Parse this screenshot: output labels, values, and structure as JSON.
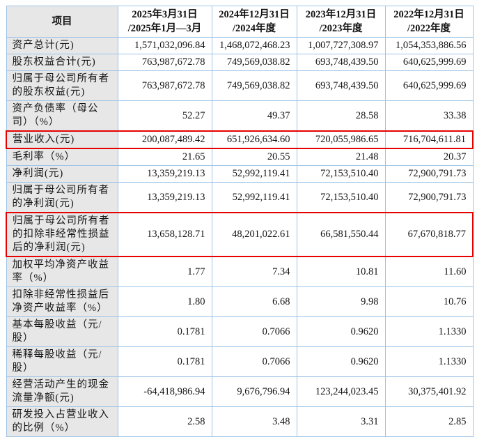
{
  "table": {
    "columns": [
      {
        "line1": "项目",
        "line2": ""
      },
      {
        "line1": "2025年3月31日",
        "line2": "/2025年1月—3月"
      },
      {
        "line1": "2024年12月31日",
        "line2": "/2024年度"
      },
      {
        "line1": "2023年12月31日",
        "line2": "/2023年度"
      },
      {
        "line1": "2022年12月31日",
        "line2": "/2022年度"
      }
    ],
    "rows": [
      {
        "label": "资产总计(元)",
        "values": [
          "1,571,032,096.84",
          "1,468,072,468.23",
          "1,007,727,308.97",
          "1,054,353,886.56"
        ],
        "highlighted": false
      },
      {
        "label": "股东权益合计(元)",
        "values": [
          "763,987,672.78",
          "749,569,038.82",
          "693,748,439.50",
          "640,625,999.69"
        ],
        "highlighted": false
      },
      {
        "label": "归属于母公司所有者的股东权益(元)",
        "values": [
          "763,987,672.78",
          "749,569,038.82",
          "693,748,439.50",
          "640,625,999.69"
        ],
        "highlighted": false
      },
      {
        "label": "资产负债率（母公司）（%）",
        "values": [
          "52.27",
          "49.37",
          "28.58",
          "33.38"
        ],
        "highlighted": false
      },
      {
        "label": "营业收入(元)",
        "values": [
          "200,087,489.42",
          "651,926,634.60",
          "720,055,986.65",
          "716,704,611.81"
        ],
        "highlighted": true
      },
      {
        "label": "毛利率（%）",
        "values": [
          "21.65",
          "20.55",
          "21.48",
          "20.37"
        ],
        "highlighted": false
      },
      {
        "label": "净利润(元)",
        "values": [
          "13,359,219.13",
          "52,992,119.41",
          "72,153,510.40",
          "72,900,791.73"
        ],
        "highlighted": false
      },
      {
        "label": "归属于母公司所有者的净利润(元)",
        "values": [
          "13,359,219.13",
          "52,992,119.41",
          "72,153,510.40",
          "72,900,791.73"
        ],
        "highlighted": false
      },
      {
        "label": "归属于母公司所有者的扣除非经常性损益后的净利润(元)",
        "values": [
          "13,658,128.71",
          "48,201,022.61",
          "66,581,550.44",
          "67,670,818.77"
        ],
        "highlighted": true
      },
      {
        "label": "加权平均净资产收益率（%）",
        "values": [
          "1.77",
          "7.34",
          "10.81",
          "11.60"
        ],
        "highlighted": false
      },
      {
        "label": "扣除非经常性损益后净资产收益率（%）",
        "values": [
          "1.80",
          "6.68",
          "9.98",
          "10.76"
        ],
        "highlighted": false
      },
      {
        "label": "基本每股收益（元/股）",
        "values": [
          "0.1781",
          "0.7066",
          "0.9620",
          "1.1330"
        ],
        "highlighted": false
      },
      {
        "label": "稀释每股收益（元/股）",
        "values": [
          "0.1781",
          "0.7066",
          "0.9620",
          "1.1330"
        ],
        "highlighted": false
      },
      {
        "label": "经营活动产生的现金流量净额(元)",
        "values": [
          "-64,418,986.94",
          "9,676,796.94",
          "123,244,023.45",
          "30,375,401.92"
        ],
        "highlighted": false
      },
      {
        "label": "研发投入占营业收入的比例（%）",
        "values": [
          "2.58",
          "3.48",
          "3.31",
          "2.85"
        ],
        "highlighted": false
      }
    ],
    "colors": {
      "border": "#9dc3e6",
      "label_background": "#e7e7e7",
      "highlight_outline": "#e60000"
    }
  }
}
